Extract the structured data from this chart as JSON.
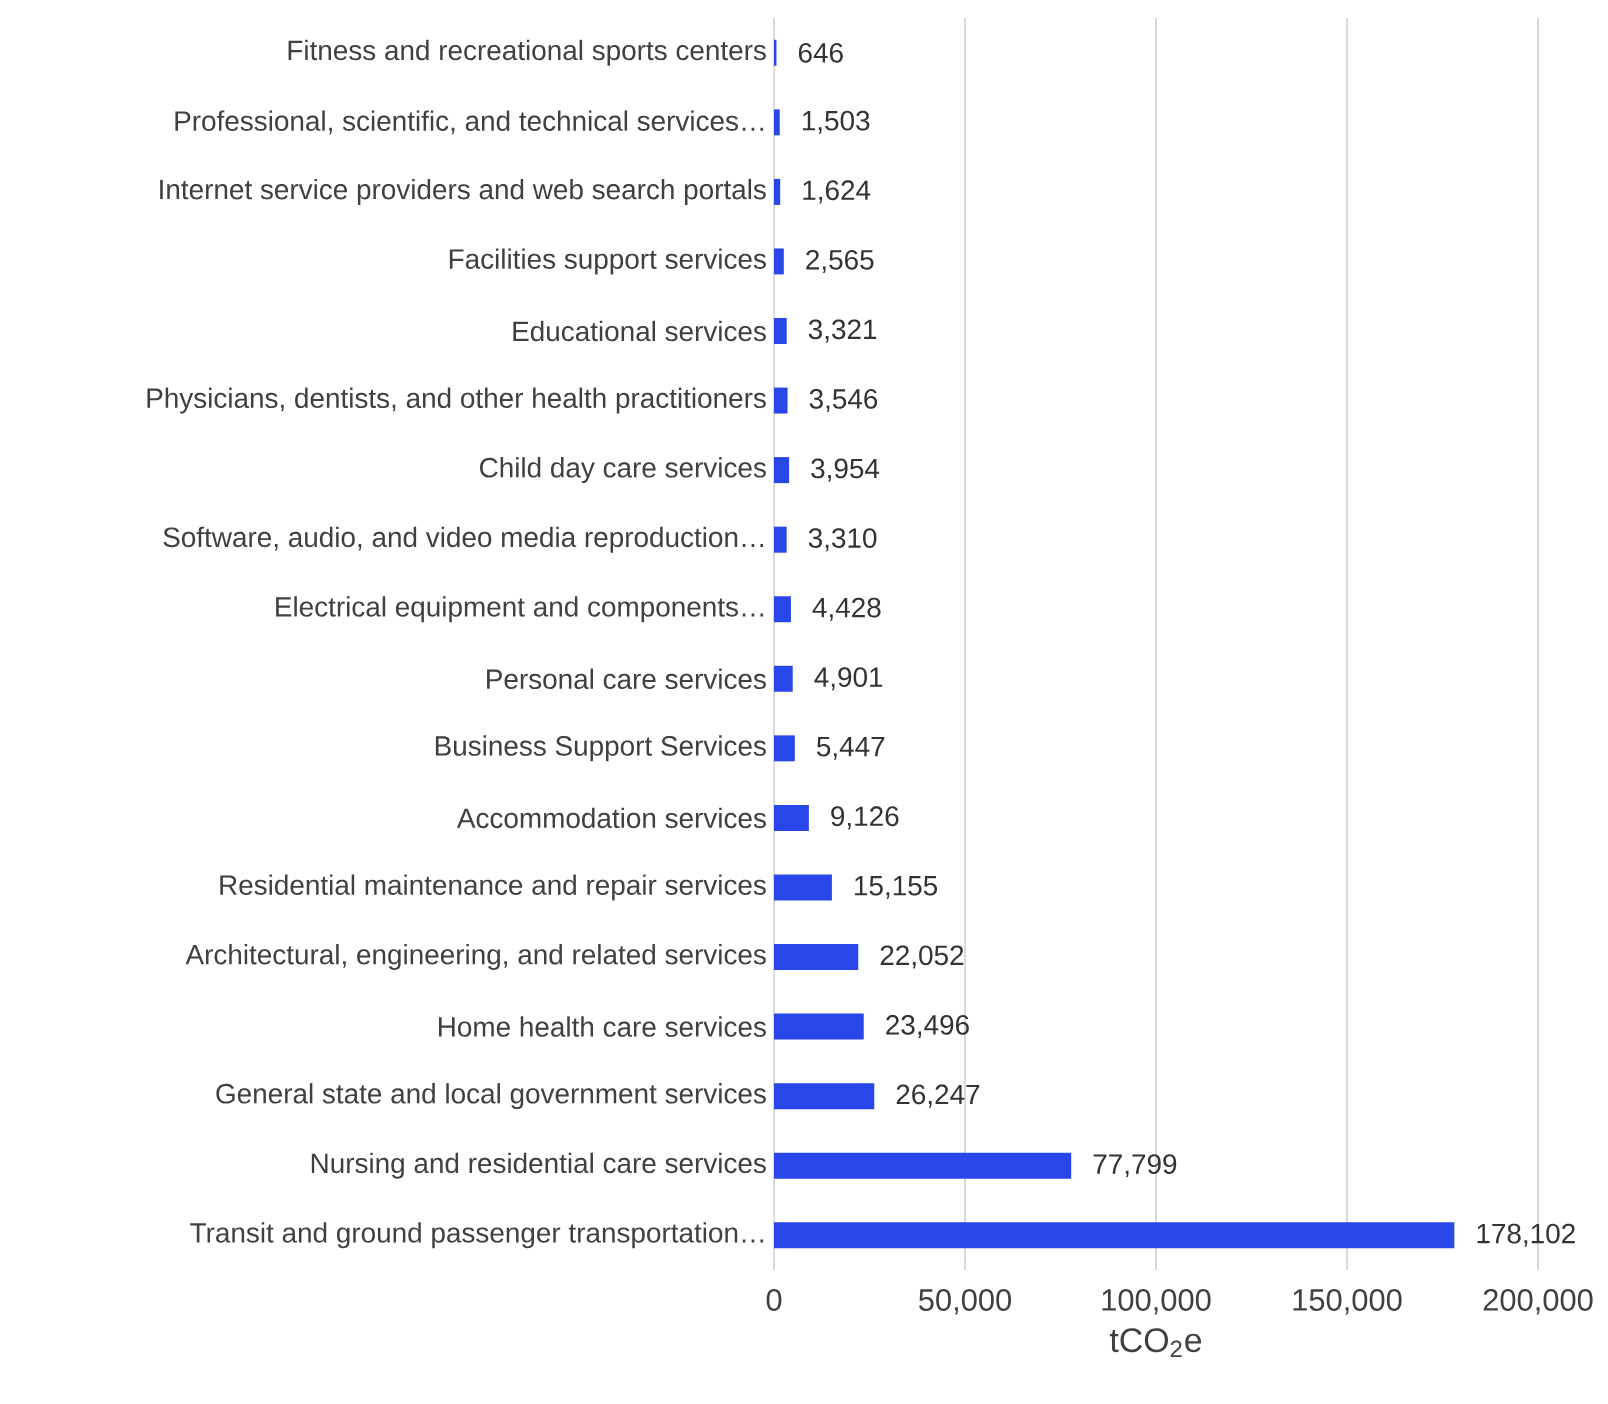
{
  "chart_data": {
    "type": "bar",
    "orientation": "horizontal",
    "color": "#2947e8",
    "grid": "x",
    "xlabel": "tCO$_{2}$e",
    "categories": [
      "Fitness and recreational sports centers",
      "Professional, scientific, and technical services…",
      "Internet service providers and web search portals",
      "Facilities support services",
      "Educational services",
      "Physicians, dentists, and other health practitioners",
      "Child day care services",
      "Software, audio, and video media reproduction…",
      "Electrical equipment and components…",
      "Personal care services",
      "Business Support Services",
      "Accommodation services",
      "Residential maintenance and repair services",
      "Architectural, engineering, and related services",
      "Home health care services",
      "General state and local government services",
      "Nursing and residential care services",
      "Transit and ground passenger transportation…"
    ],
    "values": [
      646,
      1503,
      1624,
      2565,
      3321,
      3546,
      3954,
      3310,
      4428,
      4901,
      5447,
      9126,
      15155,
      22052,
      23496,
      26247,
      77799,
      178102
    ],
    "value_labels": [
      "646",
      "1,503",
      "1,624",
      "2,565",
      "3,321",
      "3,546",
      "3,954",
      "3,310",
      "4,428",
      "4,901",
      "5,447",
      "9,126",
      "15,155",
      "22,052",
      "23,496",
      "26,247",
      "77,799",
      "178,102"
    ],
    "xlim": [
      0,
      200000
    ],
    "xticks": [
      0,
      {
        "value": 50000,
        "label": "50,000"
      },
      {
        "value": 100000,
        "label": "100,000"
      },
      {
        "value": 150000,
        "label": "150,000"
      },
      {
        "value": 200000,
        "label": "200,000"
      }
    ]
  }
}
